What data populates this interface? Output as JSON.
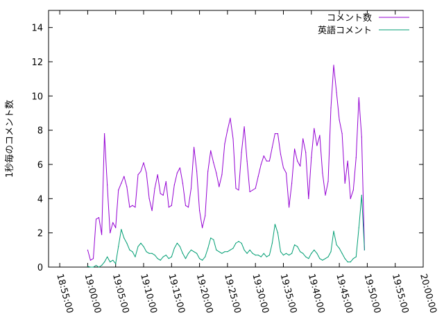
{
  "chart_data": {
    "type": "line",
    "title": "",
    "xlabel": "",
    "ylabel": "1秒毎のコメント数",
    "xlim": [
      "18:53:00",
      "20:00:00"
    ],
    "ylim": [
      0,
      15
    ],
    "x_ticks": [
      "18:55:00",
      "19:00:00",
      "19:05:00",
      "19:10:00",
      "19:15:00",
      "19:20:00",
      "19:25:00",
      "19:30:00",
      "19:35:00",
      "19:40:00",
      "19:45:00",
      "19:50:00",
      "19:55:00",
      "20:00:00"
    ],
    "y_ticks": [
      0,
      2,
      4,
      6,
      8,
      10,
      12,
      14
    ],
    "grid": false,
    "legend_position": "top-right",
    "series": [
      {
        "name": "コメント数",
        "color": "#9400d3",
        "points": [
          [
            "19:00:00",
            1.0
          ],
          [
            "19:00:30",
            0.4
          ],
          [
            "19:01:00",
            0.5
          ],
          [
            "19:01:30",
            2.8
          ],
          [
            "19:02:00",
            2.9
          ],
          [
            "19:02:30",
            1.9
          ],
          [
            "19:03:00",
            7.8
          ],
          [
            "19:03:30",
            4.8
          ],
          [
            "19:04:00",
            2.0
          ],
          [
            "19:04:30",
            2.6
          ],
          [
            "19:05:00",
            2.3
          ],
          [
            "19:05:30",
            4.5
          ],
          [
            "19:06:00",
            4.9
          ],
          [
            "19:06:30",
            5.3
          ],
          [
            "19:07:00",
            4.7
          ],
          [
            "19:07:30",
            3.5
          ],
          [
            "19:08:00",
            3.6
          ],
          [
            "19:08:30",
            3.5
          ],
          [
            "19:09:00",
            5.4
          ],
          [
            "19:09:30",
            5.6
          ],
          [
            "19:10:00",
            6.1
          ],
          [
            "19:10:30",
            5.5
          ],
          [
            "19:11:00",
            4.0
          ],
          [
            "19:11:30",
            3.3
          ],
          [
            "19:12:00",
            4.6
          ],
          [
            "19:12:30",
            5.4
          ],
          [
            "19:13:00",
            4.3
          ],
          [
            "19:13:30",
            4.2
          ],
          [
            "19:14:00",
            5.0
          ],
          [
            "19:14:30",
            3.5
          ],
          [
            "19:15:00",
            3.6
          ],
          [
            "19:15:30",
            4.8
          ],
          [
            "19:16:00",
            5.5
          ],
          [
            "19:16:30",
            5.8
          ],
          [
            "19:17:00",
            4.9
          ],
          [
            "19:17:30",
            3.6
          ],
          [
            "19:18:00",
            3.5
          ],
          [
            "19:18:30",
            4.6
          ],
          [
            "19:19:00",
            7.0
          ],
          [
            "19:19:30",
            5.6
          ],
          [
            "19:20:00",
            3.3
          ],
          [
            "19:20:30",
            2.3
          ],
          [
            "19:21:00",
            3.0
          ],
          [
            "19:21:30",
            5.6
          ],
          [
            "19:22:00",
            6.8
          ],
          [
            "19:22:30",
            6.1
          ],
          [
            "19:23:00",
            5.5
          ],
          [
            "19:23:30",
            4.7
          ],
          [
            "19:24:00",
            5.4
          ],
          [
            "19:24:30",
            7.2
          ],
          [
            "19:25:00",
            8.0
          ],
          [
            "19:25:30",
            8.7
          ],
          [
            "19:26:00",
            7.5
          ],
          [
            "19:26:30",
            4.6
          ],
          [
            "19:27:00",
            4.5
          ],
          [
            "19:27:30",
            6.7
          ],
          [
            "19:28:00",
            8.2
          ],
          [
            "19:28:30",
            6.2
          ],
          [
            "19:29:00",
            4.4
          ],
          [
            "19:29:30",
            4.5
          ],
          [
            "19:30:00",
            4.6
          ],
          [
            "19:30:30",
            5.3
          ],
          [
            "19:31:00",
            6.0
          ],
          [
            "19:31:30",
            6.5
          ],
          [
            "19:32:00",
            6.2
          ],
          [
            "19:32:30",
            6.2
          ],
          [
            "19:33:00",
            7.0
          ],
          [
            "19:33:30",
            7.8
          ],
          [
            "19:34:00",
            7.8
          ],
          [
            "19:34:30",
            6.6
          ],
          [
            "19:35:00",
            5.8
          ],
          [
            "19:35:30",
            5.5
          ],
          [
            "19:36:00",
            3.5
          ],
          [
            "19:36:30",
            4.9
          ],
          [
            "19:37:00",
            6.9
          ],
          [
            "19:37:30",
            6.2
          ],
          [
            "19:38:00",
            5.9
          ],
          [
            "19:38:30",
            7.5
          ],
          [
            "19:39:00",
            6.7
          ],
          [
            "19:39:30",
            4.0
          ],
          [
            "19:40:00",
            6.4
          ],
          [
            "19:40:30",
            8.1
          ],
          [
            "19:41:00",
            7.1
          ],
          [
            "19:41:30",
            7.7
          ],
          [
            "19:42:00",
            5.5
          ],
          [
            "19:42:30",
            4.2
          ],
          [
            "19:43:00",
            5.0
          ],
          [
            "19:43:30",
            9.3
          ],
          [
            "19:44:00",
            11.8
          ],
          [
            "19:44:30",
            10.2
          ],
          [
            "19:45:00",
            8.6
          ],
          [
            "19:45:30",
            7.8
          ],
          [
            "19:46:00",
            4.9
          ],
          [
            "19:46:30",
            6.2
          ],
          [
            "19:47:00",
            4.0
          ],
          [
            "19:47:30",
            4.5
          ],
          [
            "19:48:00",
            6.4
          ],
          [
            "19:48:30",
            9.9
          ],
          [
            "19:49:00",
            7.6
          ],
          [
            "19:49:30",
            1.0
          ]
        ]
      },
      {
        "name": "英語コメント",
        "color": "#009e73",
        "points": [
          [
            "19:00:00",
            0.05
          ],
          [
            "19:00:30",
            0.0
          ],
          [
            "19:01:00",
            0.0
          ],
          [
            "19:01:30",
            0.1
          ],
          [
            "19:02:00",
            0.0
          ],
          [
            "19:02:30",
            0.1
          ],
          [
            "19:03:00",
            0.3
          ],
          [
            "19:03:30",
            0.6
          ],
          [
            "19:04:00",
            0.3
          ],
          [
            "19:04:30",
            0.4
          ],
          [
            "19:05:00",
            0.2
          ],
          [
            "19:05:30",
            1.2
          ],
          [
            "19:06:00",
            2.2
          ],
          [
            "19:06:30",
            1.7
          ],
          [
            "19:07:00",
            1.4
          ],
          [
            "19:07:30",
            1.0
          ],
          [
            "19:08:00",
            0.9
          ],
          [
            "19:08:30",
            0.6
          ],
          [
            "19:09:00",
            1.2
          ],
          [
            "19:09:30",
            1.4
          ],
          [
            "19:10:00",
            1.2
          ],
          [
            "19:10:30",
            0.9
          ],
          [
            "19:11:00",
            0.8
          ],
          [
            "19:11:30",
            0.8
          ],
          [
            "19:12:00",
            0.7
          ],
          [
            "19:12:30",
            0.5
          ],
          [
            "19:13:00",
            0.4
          ],
          [
            "19:13:30",
            0.6
          ],
          [
            "19:14:00",
            0.7
          ],
          [
            "19:14:30",
            0.5
          ],
          [
            "19:15:00",
            0.6
          ],
          [
            "19:15:30",
            1.1
          ],
          [
            "19:16:00",
            1.4
          ],
          [
            "19:16:30",
            1.2
          ],
          [
            "19:17:00",
            0.8
          ],
          [
            "19:17:30",
            0.5
          ],
          [
            "19:18:00",
            0.8
          ],
          [
            "19:18:30",
            1.0
          ],
          [
            "19:19:00",
            0.9
          ],
          [
            "19:19:30",
            0.8
          ],
          [
            "19:20:00",
            0.5
          ],
          [
            "19:20:30",
            0.4
          ],
          [
            "19:21:00",
            0.6
          ],
          [
            "19:21:30",
            1.1
          ],
          [
            "19:22:00",
            1.7
          ],
          [
            "19:22:30",
            1.6
          ],
          [
            "19:23:00",
            1.0
          ],
          [
            "19:23:30",
            0.9
          ],
          [
            "19:24:00",
            0.8
          ],
          [
            "19:24:30",
            0.9
          ],
          [
            "19:25:00",
            0.9
          ],
          [
            "19:25:30",
            1.0
          ],
          [
            "19:26:00",
            1.1
          ],
          [
            "19:26:30",
            1.4
          ],
          [
            "19:27:00",
            1.5
          ],
          [
            "19:27:30",
            1.4
          ],
          [
            "19:28:00",
            1.0
          ],
          [
            "19:28:30",
            0.8
          ],
          [
            "19:29:00",
            1.0
          ],
          [
            "19:29:30",
            0.8
          ],
          [
            "19:30:00",
            0.7
          ],
          [
            "19:30:30",
            0.7
          ],
          [
            "19:31:00",
            0.6
          ],
          [
            "19:31:30",
            0.8
          ],
          [
            "19:32:00",
            0.6
          ],
          [
            "19:32:30",
            0.7
          ],
          [
            "19:33:00",
            1.4
          ],
          [
            "19:33:30",
            2.5
          ],
          [
            "19:34:00",
            2.0
          ],
          [
            "19:34:30",
            0.9
          ],
          [
            "19:35:00",
            0.7
          ],
          [
            "19:35:30",
            0.8
          ],
          [
            "19:36:00",
            0.7
          ],
          [
            "19:36:30",
            0.8
          ],
          [
            "19:37:00",
            1.3
          ],
          [
            "19:37:30",
            1.2
          ],
          [
            "19:38:00",
            0.9
          ],
          [
            "19:38:30",
            0.8
          ],
          [
            "19:39:00",
            0.6
          ],
          [
            "19:39:30",
            0.5
          ],
          [
            "19:40:00",
            0.8
          ],
          [
            "19:40:30",
            1.0
          ],
          [
            "19:41:00",
            0.8
          ],
          [
            "19:41:30",
            0.5
          ],
          [
            "19:42:00",
            0.4
          ],
          [
            "19:42:30",
            0.5
          ],
          [
            "19:43:00",
            0.6
          ],
          [
            "19:43:30",
            0.9
          ],
          [
            "19:44:00",
            2.1
          ],
          [
            "19:44:30",
            1.3
          ],
          [
            "19:45:00",
            1.1
          ],
          [
            "19:45:30",
            0.8
          ],
          [
            "19:46:00",
            0.5
          ],
          [
            "19:46:30",
            0.3
          ],
          [
            "19:47:00",
            0.3
          ],
          [
            "19:47:30",
            0.5
          ],
          [
            "19:48:00",
            0.6
          ],
          [
            "19:48:30",
            2.3
          ],
          [
            "19:49:00",
            4.2
          ],
          [
            "19:49:30",
            1.0
          ]
        ]
      }
    ]
  }
}
